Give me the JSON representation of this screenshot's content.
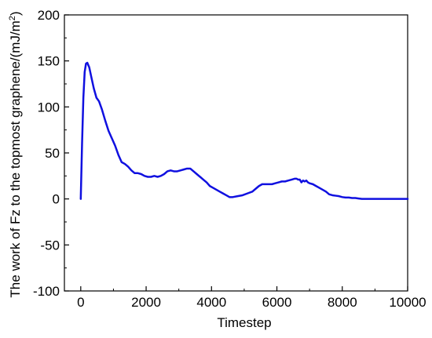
{
  "chart_data": {
    "type": "line",
    "xlabel": "Timestep",
    "ylabel_main": "The work of Fz to the topmost graphene/(mJ/m",
    "ylabel_sup": "2",
    "ylabel_end": ")",
    "xlim": [
      -500,
      10000
    ],
    "ylim": [
      -100,
      200
    ],
    "xticks": [
      0,
      2000,
      4000,
      6000,
      8000,
      10000
    ],
    "yticks": [
      -100,
      -50,
      0,
      50,
      100,
      150,
      200
    ],
    "xtick_labels": [
      "0",
      "2000",
      "4000",
      "6000",
      "8000",
      "10000"
    ],
    "ytick_labels": [
      "-100",
      "-50",
      "0",
      "50",
      "100",
      "150",
      "200"
    ],
    "grid": false,
    "series_color": "#1010e0",
    "series": [
      {
        "x": [
          0,
          40,
          80,
          120,
          160,
          200,
          260,
          320,
          400,
          480,
          560,
          650,
          750,
          850,
          950,
          1050,
          1150,
          1250,
          1350,
          1450,
          1550,
          1650,
          1750,
          1850,
          1950,
          2050,
          2150,
          2250,
          2350,
          2450,
          2550,
          2650,
          2750,
          2850,
          2950,
          3050,
          3150,
          3250,
          3350,
          3450,
          3550,
          3650,
          3750,
          3850,
          3950,
          4050,
          4150,
          4250,
          4350,
          4450,
          4550,
          4650,
          4800,
          4950,
          5100,
          5250,
          5350,
          5450,
          5550,
          5650,
          5750,
          5850,
          5950,
          6050,
          6150,
          6250,
          6350,
          6450,
          6550,
          6600,
          6650,
          6700,
          6750,
          6800,
          6850,
          6900,
          6950,
          7000,
          7100,
          7200,
          7300,
          7400,
          7500,
          7600,
          7700,
          7800,
          7900,
          8000,
          8100,
          8200,
          8300,
          8400,
          8500,
          8600,
          8800,
          9000,
          9500,
          10000
        ],
        "y": [
          0,
          60,
          110,
          138,
          147,
          148,
          143,
          133,
          120,
          110,
          106,
          97,
          85,
          74,
          66,
          58,
          48,
          40,
          38,
          35,
          31,
          28,
          28,
          27,
          25,
          24,
          24,
          25,
          24,
          25,
          27,
          30,
          31,
          30,
          30,
          31,
          32,
          33,
          33,
          30,
          27,
          24,
          21,
          18,
          14,
          12,
          10,
          8,
          6,
          4,
          2,
          2,
          3,
          4,
          6,
          8,
          11,
          14,
          16,
          16,
          16,
          16,
          17,
          18,
          19,
          19,
          20,
          21,
          22,
          22,
          21,
          21,
          18,
          20,
          19,
          20,
          18,
          17,
          16,
          14,
          12,
          10,
          8,
          5,
          4,
          3.5,
          3,
          2,
          1.5,
          1.5,
          1,
          1,
          0.5,
          0,
          0,
          0,
          0,
          0
        ]
      }
    ]
  }
}
